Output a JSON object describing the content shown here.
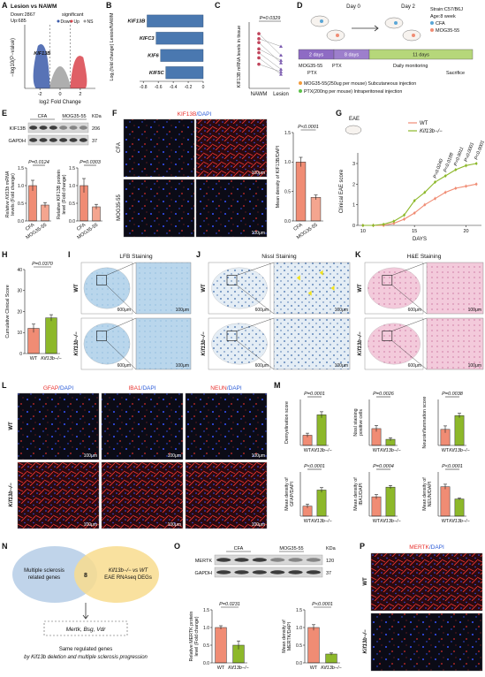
{
  "panels": {
    "A": {
      "label": "A",
      "title": "Lesion vs NAWM",
      "counts": [
        "Down:2867",
        "Up:685"
      ],
      "legend_title": "significant",
      "legend": [
        {
          "name": "Down",
          "color": "#3b5ba9"
        },
        {
          "name": "Up",
          "color": "#d9434b"
        },
        {
          "name": "NS",
          "color": "#9a9a9a"
        }
      ],
      "gene": "KIF13B",
      "xlabel": "log2 Fold Change",
      "ylabel": "−log10(P−value)",
      "xlim": [
        -3.5,
        3.5
      ],
      "xticks": [
        -2,
        0,
        2
      ]
    },
    "B": {
      "label": "B",
      "chart": {
        "type": "barh",
        "categories": [
          "KIF13B",
          "KIFC3",
          "KIF6",
          "KIF5C"
        ],
        "values": [
          -0.75,
          -0.63,
          -0.57,
          -0.5
        ],
        "color": "#4a78b0",
        "xlim": [
          -0.85,
          0
        ],
        "xticks": [
          -0.8,
          -0.6,
          -0.4,
          -0.2,
          0
        ],
        "ylabel": "Log₂(fold change) Lesion/NAWM"
      }
    },
    "C": {
      "label": "C",
      "chart": {
        "type": "paired",
        "pvalue": "P=0.0329",
        "categories": [
          "NAWM",
          "Lesion"
        ],
        "colors": [
          "#c0435a",
          "#7b5bb0"
        ],
        "values": [
          [
            4.3,
            2.6
          ],
          [
            3.9,
            3.3
          ],
          [
            3.6,
            2.0
          ],
          [
            3.1,
            2.2
          ],
          [
            2.8,
            1.5
          ],
          [
            2.4,
            1.1
          ],
          [
            1.9,
            1.3
          ]
        ],
        "ylim": [
          0,
          5
        ],
        "ylabel": "KIF13B mRNA levels in tissue"
      }
    },
    "D": {
      "label": "D",
      "days": [
        "Day 0",
        "Day 2"
      ],
      "strain": "Strain:C57/B6J",
      "age": "Age:8 week",
      "groups": [
        {
          "name": "CFA",
          "color": "#5aa6d6"
        },
        {
          "name": "MOG35-55",
          "color": "#f08c74"
        }
      ],
      "timeline": [
        "2 days",
        "8 days",
        "11 days"
      ],
      "events": [
        "MOG35-55",
        "PTX",
        "PTX",
        "Daily monitoring",
        "Sacrifice"
      ],
      "notes": [
        {
          "text": "MOG35-55(250ug per mouse) Subcutaneous injection",
          "color": "#f39c3d"
        },
        {
          "text": "PTX(200ng per mouse) Intraperitoneal injection",
          "color": "#5cc24a"
        }
      ]
    },
    "E": {
      "label": "E",
      "blot": {
        "groups": [
          "CFA",
          "MOG35-55"
        ],
        "unit": "KDa",
        "bands": [
          {
            "name": "KIF13B",
            "size": 206
          },
          {
            "name": "GAPDH",
            "size": 37
          }
        ]
      },
      "charts": [
        {
          "type": "bar",
          "pvalue": "P=0.0124",
          "categories": [
            "CFA",
            "MOG35-55"
          ],
          "values": [
            1.0,
            0.45
          ],
          "errors": [
            0.15,
            0.07
          ],
          "colors": [
            "#f08c74",
            "#f4a58f"
          ],
          "ylim": [
            0,
            1.5
          ],
          "yticks": [
            {
              "value": 0,
              "label": "0.0"
            },
            0.5,
            {
              "value": 1,
              "label": "1.0"
            },
            1.5
          ],
          "ylabel": [
            "Relative Kif13b mRNA",
            "levels (Fold change)"
          ]
        },
        {
          "type": "bar",
          "pvalue": "P=0.0303",
          "categories": [
            "CFA",
            "MOG35-55"
          ],
          "values": [
            1.0,
            0.4
          ],
          "errors": [
            0.2,
            0.07
          ],
          "colors": [
            "#f08c74",
            "#f4a58f"
          ],
          "ylim": [
            0,
            1.5
          ],
          "yticks": [
            {
              "value": 0,
              "label": "0.0"
            },
            0.5,
            {
              "value": 1,
              "label": "1.0"
            },
            1.5
          ],
          "ylabel": [
            "Relative KIF13B protein",
            "level (Fold change)"
          ]
        }
      ]
    },
    "F": {
      "label": "F",
      "stain": [
        "KIF13B",
        "/DAPI"
      ],
      "rows": [
        "CFA",
        "MOG35-55"
      ],
      "scale": "100μm",
      "chart": {
        "type": "bar",
        "pvalue": "P<0.0001",
        "categories": [
          "CFA",
          "MOG35-55"
        ],
        "values": [
          1.0,
          0.4
        ],
        "errors": [
          0.08,
          0.04
        ],
        "colors": [
          "#f08c74",
          "#f4a58f"
        ],
        "ylim": [
          0,
          1.5
        ],
        "yticks": [
          {
            "value": 0,
            "label": "0.0"
          },
          0.5,
          {
            "value": 1,
            "label": "1.0"
          },
          1.5
        ],
        "ylabel": "Mean density of KIF13B/DAPI"
      }
    },
    "G": {
      "label": "G",
      "model": "EAE",
      "chart": {
        "type": "line",
        "x": [
          10,
          11,
          12,
          13,
          14,
          15,
          16,
          17,
          18,
          19,
          20,
          21
        ],
        "series": [
          {
            "name": "WT",
            "color": "#f08c74",
            "values": [
              0,
              0,
              0,
              0.1,
              0.3,
              0.6,
              1.0,
              1.3,
              1.6,
              1.8,
              1.9,
              2.0
            ]
          },
          {
            "name": "Kif13b−/−",
            "color": "#8db82a",
            "values": [
              0,
              0,
              0.05,
              0.2,
              0.5,
              1.2,
              1.6,
              2.1,
              2.4,
              2.7,
              2.9,
              3.0
            ]
          }
        ],
        "xlim": [
          9.5,
          21.5
        ],
        "xticks": [
          10,
          15,
          20
        ],
        "ylim": [
          0,
          3.3
        ],
        "yticks": [
          0,
          1,
          2,
          3
        ],
        "xlabel": "DAYS",
        "ylabel": "Clinical EAE score",
        "pvalues": [
          "P=0.0240",
          "P=0.0188",
          "P=0.0011",
          "P=0.0001",
          "P<0.0001"
        ]
      }
    },
    "H": {
      "label": "H",
      "chart": {
        "type": "bar",
        "pvalue": "P=0.0370",
        "categories": [
          "WT",
          "Kif13b−/−"
        ],
        "values": [
          12,
          17
        ],
        "errors": [
          2,
          1.5
        ],
        "colors": [
          "#f08c74",
          "#8db82a"
        ],
        "ylim": [
          0,
          40
        ],
        "yticks": [
          0,
          10,
          20,
          30,
          40
        ],
        "ylabel": "Cumulative Clinical Score"
      }
    },
    "I": {
      "label": "I",
      "title": "LFB Staining",
      "rows": [
        "WT",
        "Kif13b−/−"
      ],
      "scales": [
        "600μm",
        "100μm"
      ]
    },
    "J": {
      "label": "J",
      "title": "Nissl Staining",
      "rows": [
        "WT",
        "Kif13b−/−"
      ],
      "scales": [
        "600μm",
        "100μm"
      ]
    },
    "K": {
      "label": "K",
      "title": "H&E Staining",
      "rows": [
        "WT",
        "Kif13b−/−"
      ],
      "scales": [
        "600μm",
        "100μm"
      ]
    },
    "L": {
      "label": "L",
      "stains": [
        [
          "GFAP",
          "/DAPI"
        ],
        [
          "IBA1",
          "/DAPI"
        ],
        [
          "NEUN",
          "/DAPI"
        ]
      ],
      "rows": [
        "WT",
        "Kif13b−/−"
      ],
      "scale": "100μm"
    },
    "M": {
      "label": "M",
      "charts": [
        {
          "type": "bar",
          "pvalue": "P=0.0001",
          "categories": [
            "WT",
            "Kif13b−/−"
          ],
          "values": [
            1.0,
            3.0
          ],
          "errors": [
            0.2,
            0.3
          ],
          "colors": [
            "#f08c74",
            "#8db82a"
          ],
          "ylim": [
            0,
            4.5
          ],
          "ylabel": "Demyelination score"
        },
        {
          "type": "bar",
          "pvalue": "P=0.0026",
          "categories": [
            "WT",
            "Kif13b−/−"
          ],
          "values": [
            22,
            8
          ],
          "errors": [
            4,
            2
          ],
          "colors": [
            "#f08c74",
            "#8db82a"
          ],
          "ylim": [
            0,
            60
          ],
          "ylabel": [
            "Nissl staining",
            "positive cells"
          ]
        },
        {
          "type": "bar",
          "pvalue": "P=0.0038",
          "categories": [
            "WT",
            "Kif13b−/−"
          ],
          "values": [
            1.4,
            2.6
          ],
          "errors": [
            0.3,
            0.2
          ],
          "colors": [
            "#f08c74",
            "#8db82a"
          ],
          "ylim": [
            0,
            4
          ],
          "ylabel": "Neuroinflammation score"
        },
        {
          "type": "bar",
          "pvalue": "P<0.0001",
          "categories": [
            "WT",
            "Kif13b−/−"
          ],
          "values": [
            0.5,
            1.3
          ],
          "errors": [
            0.1,
            0.12
          ],
          "colors": [
            "#f08c74",
            "#8db82a"
          ],
          "ylim": [
            0,
            2.2
          ],
          "ylabel": [
            "Mean density of",
            "GFAP/DAPI"
          ]
        },
        {
          "type": "bar",
          "pvalue": "P=0.0004",
          "categories": [
            "WT",
            "Kif13b−/−"
          ],
          "values": [
            0.7,
            1.05
          ],
          "errors": [
            0.08,
            0.06
          ],
          "colors": [
            "#f08c74",
            "#8db82a"
          ],
          "ylim": [
            0,
            1.6
          ],
          "ylabel": [
            "Mean density of",
            "IBA1/DAPI"
          ]
        },
        {
          "type": "bar",
          "pvalue": "P<0.0001",
          "categories": [
            "WT",
            "Kif13b−/−"
          ],
          "values": [
            0.6,
            0.35
          ],
          "errors": [
            0.05,
            0.02
          ],
          "colors": [
            "#f08c74",
            "#8db82a"
          ],
          "ylim": [
            0,
            0.9
          ],
          "ylabel": [
            "Mean density of",
            "NEUN/DAPI"
          ]
        }
      ]
    },
    "N": {
      "label": "N",
      "left": [
        "Multiple sclerosis",
        "related genes"
      ],
      "right": [
        "Kif13b−/− vs WT",
        "EAE RNAseq DEGs"
      ],
      "overlap": 8,
      "genes": "Mertk, Bsg, Vdr",
      "caption": [
        "Same regulated genes",
        "by Kif13b deletion and multiple sclerosis progression"
      ]
    },
    "O": {
      "label": "O",
      "blot": {
        "groups": [
          "CFA",
          "MOG35-55"
        ],
        "unit": "KDa",
        "bands": [
          {
            "name": "MERTK",
            "size": 120
          },
          {
            "name": "GAPDH",
            "size": 37
          }
        ]
      },
      "charts": [
        {
          "type": "bar",
          "pvalue": "P=0.0231",
          "categories": [
            "WT",
            "Kif13b−/−"
          ],
          "values": [
            1.0,
            0.5
          ],
          "errors": [
            0.05,
            0.12
          ],
          "colors": [
            "#f08c74",
            "#8db82a"
          ],
          "ylim": [
            0,
            1.5
          ],
          "yticks": [
            {
              "value": 0,
              "label": "0.0"
            },
            0.5,
            {
              "value": 1,
              "label": "1.0"
            },
            1.5
          ],
          "ylabel": [
            "Relative MERTK protein",
            "level (Fold change)"
          ]
        },
        {
          "type": "bar",
          "pvalue": "P<0.0001",
          "categories": [
            "WT",
            "Kif13b−/−"
          ],
          "values": [
            1.0,
            0.25
          ],
          "errors": [
            0.08,
            0.03
          ],
          "colors": [
            "#f08c74",
            "#8db82a"
          ],
          "ylim": [
            0,
            1.5
          ],
          "yticks": [
            {
              "value": 0,
              "label": "0.0"
            },
            0.5,
            {
              "value": 1,
              "label": "1.0"
            },
            1.5
          ],
          "ylabel": [
            "Mean density of",
            "MERTK/DAPI"
          ]
        }
      ]
    },
    "P": {
      "label": "P",
      "stain": [
        "MERTK",
        "/DAPI"
      ],
      "rows": [
        "WT",
        "Kif13b−/−"
      ]
    }
  }
}
